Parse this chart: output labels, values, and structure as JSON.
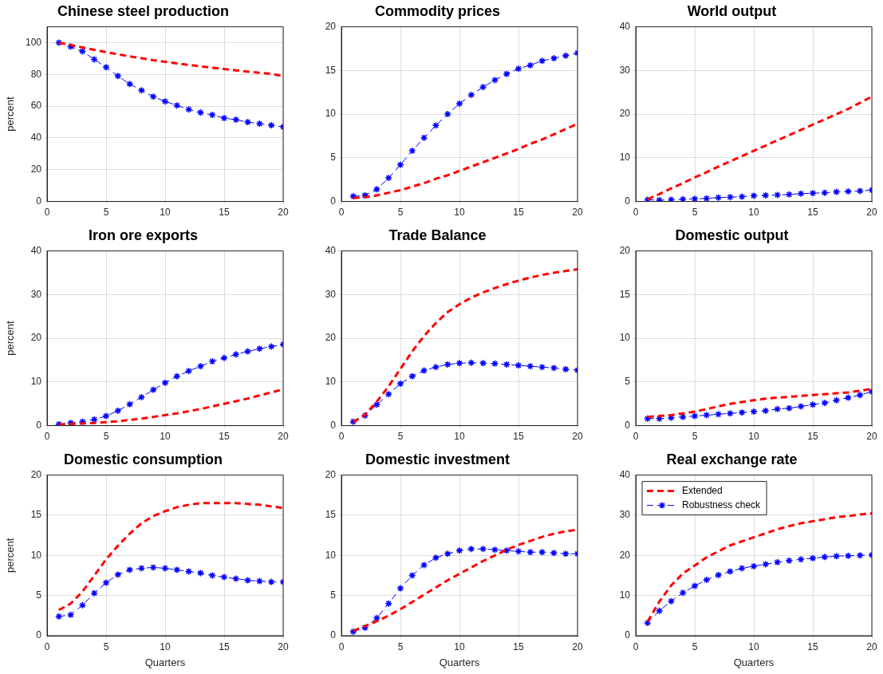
{
  "chart_data": [
    {
      "type": "line",
      "title": "Chinese steel production",
      "ylabel": "percent",
      "x": [
        1,
        2,
        3,
        4,
        5,
        6,
        7,
        8,
        9,
        10,
        11,
        12,
        13,
        14,
        15,
        16,
        17,
        18,
        19,
        20
      ],
      "xlim": [
        0,
        20
      ],
      "xticks": [
        0,
        5,
        10,
        15,
        20
      ],
      "ylim": [
        0,
        110
      ],
      "yticks": [
        0,
        20,
        40,
        60,
        80,
        100
      ],
      "grid": true,
      "legend": false,
      "series": [
        {
          "color": "#ff0000",
          "line_style": "dashed",
          "marker": "none",
          "values": [
            100,
            98.5,
            97,
            95.5,
            94,
            92.7,
            91.4,
            90.2,
            89,
            88,
            87,
            86,
            85.1,
            84.2,
            83.4,
            82.6,
            81.8,
            81,
            80.3,
            79
          ]
        },
        {
          "color": "#0000ff",
          "line_style": "dashed",
          "marker": "cross",
          "values": [
            100,
            97.5,
            94.5,
            89.5,
            84.5,
            79,
            74,
            70,
            66,
            63,
            60.5,
            58,
            56,
            54.5,
            52.5,
            51.5,
            50,
            49,
            48,
            47
          ]
        }
      ]
    },
    {
      "type": "line",
      "title": "Commodity prices",
      "x": [
        1,
        2,
        3,
        4,
        5,
        6,
        7,
        8,
        9,
        10,
        11,
        12,
        13,
        14,
        15,
        16,
        17,
        18,
        19,
        20
      ],
      "xlim": [
        0,
        20
      ],
      "xticks": [
        0,
        5,
        10,
        15,
        20
      ],
      "ylim": [
        0,
        20
      ],
      "yticks": [
        0,
        5,
        10,
        15,
        20
      ],
      "grid": true,
      "legend": false,
      "series": [
        {
          "color": "#ff0000",
          "line_style": "dashed",
          "marker": "none",
          "values": [
            0.4,
            0.5,
            0.7,
            1.0,
            1.3,
            1.7,
            2.1,
            2.6,
            3.0,
            3.5,
            4.0,
            4.5,
            5.0,
            5.5,
            6.0,
            6.6,
            7.1,
            7.7,
            8.3,
            8.9
          ]
        },
        {
          "color": "#0000ff",
          "line_style": "dashed",
          "marker": "cross",
          "values": [
            0.6,
            0.7,
            1.4,
            2.7,
            4.2,
            5.8,
            7.3,
            8.7,
            10.0,
            11.2,
            12.2,
            13.1,
            13.9,
            14.6,
            15.2,
            15.6,
            16.1,
            16.4,
            16.7,
            17.0
          ]
        }
      ]
    },
    {
      "type": "line",
      "title": "World output",
      "x": [
        1,
        2,
        3,
        4,
        5,
        6,
        7,
        8,
        9,
        10,
        11,
        12,
        13,
        14,
        15,
        16,
        17,
        18,
        19,
        20
      ],
      "xlim": [
        0,
        20
      ],
      "xticks": [
        0,
        5,
        10,
        15,
        20
      ],
      "ylim": [
        0,
        40
      ],
      "yticks": [
        0,
        10,
        20,
        30,
        40
      ],
      "grid": true,
      "legend": false,
      "series": [
        {
          "color": "#ff0000",
          "line_style": "dashed",
          "marker": "none",
          "values": [
            0.5,
            1.7,
            3.0,
            4.2,
            5.5,
            6.7,
            8.0,
            9.2,
            10.4,
            11.6,
            12.8,
            14.0,
            15.2,
            16.4,
            17.6,
            18.8,
            20.0,
            21.2,
            22.6,
            24.0
          ]
        },
        {
          "color": "#0000ff",
          "line_style": "dashed",
          "marker": "cross",
          "values": [
            0.4,
            0.3,
            0.4,
            0.5,
            0.6,
            0.7,
            0.9,
            1.0,
            1.1,
            1.3,
            1.4,
            1.5,
            1.6,
            1.8,
            1.9,
            2.0,
            2.2,
            2.3,
            2.4,
            2.6
          ]
        }
      ]
    },
    {
      "type": "line",
      "title": "Iron ore exports",
      "ylabel": "percent",
      "x": [
        1,
        2,
        3,
        4,
        5,
        6,
        7,
        8,
        9,
        10,
        11,
        12,
        13,
        14,
        15,
        16,
        17,
        18,
        19,
        20
      ],
      "xlim": [
        0,
        20
      ],
      "xticks": [
        0,
        5,
        10,
        15,
        20
      ],
      "ylim": [
        0,
        40
      ],
      "yticks": [
        0,
        10,
        20,
        30,
        40
      ],
      "grid": true,
      "legend": false,
      "series": [
        {
          "color": "#ff0000",
          "line_style": "dashed",
          "marker": "none",
          "values": [
            0.3,
            0.4,
            0.5,
            0.6,
            0.8,
            1.0,
            1.3,
            1.6,
            2.0,
            2.4,
            2.8,
            3.3,
            3.8,
            4.4,
            5.0,
            5.6,
            6.2,
            6.9,
            7.6,
            8.3
          ]
        },
        {
          "color": "#0000ff",
          "line_style": "dashed",
          "marker": "cross",
          "values": [
            0.3,
            0.6,
            0.9,
            1.4,
            2.2,
            3.4,
            4.9,
            6.5,
            8.2,
            9.8,
            11.3,
            12.5,
            13.6,
            14.7,
            15.5,
            16.3,
            17.0,
            17.6,
            18.1,
            18.6
          ]
        }
      ]
    },
    {
      "type": "line",
      "title": "Trade Balance",
      "x": [
        1,
        2,
        3,
        4,
        5,
        6,
        7,
        8,
        9,
        10,
        11,
        12,
        13,
        14,
        15,
        16,
        17,
        18,
        19,
        20
      ],
      "xlim": [
        0,
        20
      ],
      "xticks": [
        0,
        5,
        10,
        15,
        20
      ],
      "ylim": [
        0,
        40
      ],
      "yticks": [
        0,
        10,
        20,
        30,
        40
      ],
      "grid": true,
      "legend": false,
      "series": [
        {
          "color": "#ff0000",
          "line_style": "dashed",
          "marker": "none",
          "values": [
            0.8,
            2.5,
            5.5,
            9,
            13,
            17,
            20.5,
            23.5,
            26,
            27.8,
            29.3,
            30.5,
            31.5,
            32.4,
            33.2,
            33.9,
            34.5,
            35.0,
            35.4,
            35.8
          ]
        },
        {
          "color": "#0000ff",
          "line_style": "dashed",
          "marker": "cross",
          "values": [
            0.9,
            2.3,
            4.8,
            7.2,
            9.6,
            11.3,
            12.6,
            13.4,
            14.0,
            14.3,
            14.4,
            14.3,
            14.2,
            14.0,
            13.8,
            13.6,
            13.4,
            13.2,
            12.9,
            12.7
          ]
        }
      ]
    },
    {
      "type": "line",
      "title": "Domestic output",
      "x": [
        1,
        2,
        3,
        4,
        5,
        6,
        7,
        8,
        9,
        10,
        11,
        12,
        13,
        14,
        15,
        16,
        17,
        18,
        19,
        20
      ],
      "xlim": [
        0,
        20
      ],
      "xticks": [
        0,
        5,
        10,
        15,
        20
      ],
      "ylim": [
        0,
        20
      ],
      "yticks": [
        0,
        5,
        10,
        15,
        20
      ],
      "grid": true,
      "legend": false,
      "series": [
        {
          "color": "#ff0000",
          "line_style": "dashed",
          "marker": "none",
          "values": [
            1.0,
            1.1,
            1.2,
            1.4,
            1.6,
            1.9,
            2.2,
            2.5,
            2.7,
            2.9,
            3.1,
            3.2,
            3.3,
            3.4,
            3.5,
            3.6,
            3.7,
            3.8,
            4.0,
            4.2
          ]
        },
        {
          "color": "#0000ff",
          "line_style": "dashed",
          "marker": "cross",
          "values": [
            0.8,
            0.8,
            0.9,
            1.0,
            1.1,
            1.2,
            1.3,
            1.4,
            1.5,
            1.6,
            1.7,
            1.9,
            2.0,
            2.2,
            2.4,
            2.6,
            2.9,
            3.2,
            3.5,
            3.9
          ]
        }
      ]
    },
    {
      "type": "line",
      "title": "Domestic consumption",
      "ylabel": "percent",
      "xlabel": "Quarters",
      "x": [
        1,
        2,
        3,
        4,
        5,
        6,
        7,
        8,
        9,
        10,
        11,
        12,
        13,
        14,
        15,
        16,
        17,
        18,
        19,
        20
      ],
      "xlim": [
        0,
        20
      ],
      "xticks": [
        0,
        5,
        10,
        15,
        20
      ],
      "ylim": [
        0,
        20
      ],
      "yticks": [
        0,
        5,
        10,
        15,
        20
      ],
      "grid": true,
      "legend": false,
      "series": [
        {
          "color": "#ff0000",
          "line_style": "dashed",
          "marker": "none",
          "values": [
            3.2,
            4.0,
            5.5,
            7.5,
            9.5,
            11.2,
            12.7,
            14.0,
            14.9,
            15.5,
            16.0,
            16.3,
            16.5,
            16.5,
            16.5,
            16.5,
            16.4,
            16.3,
            16.1,
            15.9
          ]
        },
        {
          "color": "#0000ff",
          "line_style": "dashed",
          "marker": "cross",
          "values": [
            2.4,
            2.6,
            3.8,
            5.3,
            6.6,
            7.6,
            8.2,
            8.4,
            8.5,
            8.4,
            8.2,
            8.0,
            7.8,
            7.5,
            7.3,
            7.1,
            6.9,
            6.8,
            6.7,
            6.7
          ]
        }
      ]
    },
    {
      "type": "line",
      "title": "Domestic investment",
      "xlabel": "Quarters",
      "x": [
        1,
        2,
        3,
        4,
        5,
        6,
        7,
        8,
        9,
        10,
        11,
        12,
        13,
        14,
        15,
        16,
        17,
        18,
        19,
        20
      ],
      "xlim": [
        0,
        20
      ],
      "xticks": [
        0,
        5,
        10,
        15,
        20
      ],
      "ylim": [
        0,
        20
      ],
      "yticks": [
        0,
        5,
        10,
        15,
        20
      ],
      "grid": true,
      "legend": false,
      "series": [
        {
          "color": "#ff0000",
          "line_style": "dashed",
          "marker": "none",
          "values": [
            0.6,
            1.2,
            1.8,
            2.5,
            3.3,
            4.2,
            5.1,
            6.0,
            6.9,
            7.7,
            8.5,
            9.3,
            10.0,
            10.7,
            11.3,
            11.8,
            12.3,
            12.7,
            13.0,
            13.2
          ]
        },
        {
          "color": "#0000ff",
          "line_style": "dashed",
          "marker": "cross",
          "values": [
            0.5,
            1.0,
            2.2,
            4.0,
            5.9,
            7.5,
            8.8,
            9.7,
            10.2,
            10.6,
            10.8,
            10.8,
            10.7,
            10.6,
            10.5,
            10.4,
            10.4,
            10.3,
            10.2,
            10.2
          ]
        }
      ]
    },
    {
      "type": "line",
      "title": "Real exchange rate",
      "xlabel": "Quarters",
      "x": [
        1,
        2,
        3,
        4,
        5,
        6,
        7,
        8,
        9,
        10,
        11,
        12,
        13,
        14,
        15,
        16,
        17,
        18,
        19,
        20
      ],
      "xlim": [
        0,
        20
      ],
      "xticks": [
        0,
        5,
        10,
        15,
        20
      ],
      "ylim": [
        0,
        40
      ],
      "yticks": [
        0,
        10,
        20,
        30,
        40
      ],
      "grid": true,
      "legend": "top left",
      "series": [
        {
          "name": "Extended",
          "color": "#ff0000",
          "line_style": "dashed",
          "marker": "none",
          "values": [
            3.5,
            8.5,
            12.5,
            15.5,
            17.5,
            19.5,
            21,
            22.5,
            23.5,
            24.5,
            25.5,
            26.5,
            27.3,
            28,
            28.5,
            29,
            29.5,
            29.8,
            30.2,
            30.5
          ]
        },
        {
          "name": "Robustness check",
          "color": "#0000ff",
          "line_style": "dashed",
          "marker": "cross",
          "values": [
            3.2,
            6.2,
            8.6,
            10.7,
            12.4,
            13.9,
            15.1,
            16.0,
            16.8,
            17.3,
            17.8,
            18.3,
            18.7,
            19.0,
            19.3,
            19.6,
            19.8,
            19.9,
            20.0,
            20.1
          ]
        }
      ]
    }
  ]
}
